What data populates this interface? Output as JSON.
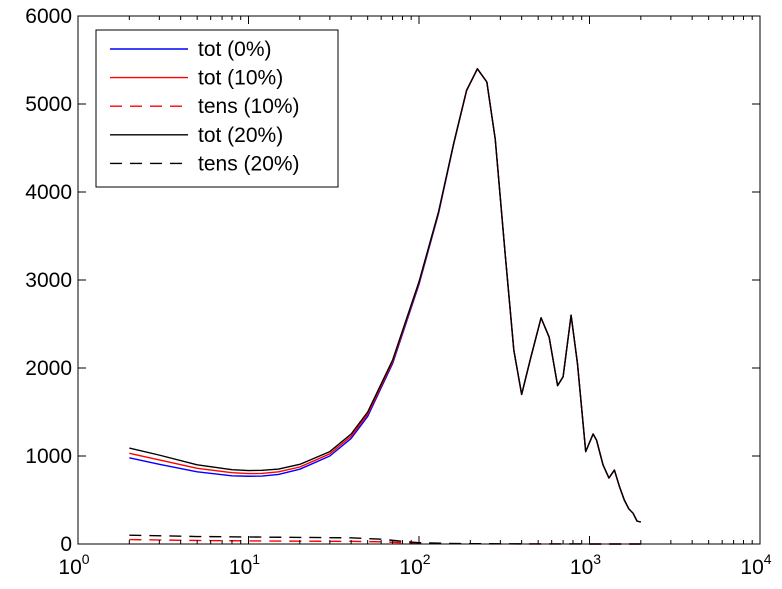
{
  "chart_data": {
    "type": "line",
    "title": "",
    "xlabel": "",
    "ylabel": "",
    "x_scale": "log",
    "xlim": [
      1,
      10000
    ],
    "ylim": [
      0,
      6000
    ],
    "x_ticks": [
      {
        "value": 1,
        "base": "10",
        "exp": "0"
      },
      {
        "value": 10,
        "base": "10",
        "exp": "1"
      },
      {
        "value": 100,
        "base": "10",
        "exp": "2"
      },
      {
        "value": 1000,
        "base": "10",
        "exp": "3"
      },
      {
        "value": 10000,
        "base": "10",
        "exp": "4"
      }
    ],
    "y_ticks": [
      0,
      1000,
      2000,
      3000,
      4000,
      5000,
      6000
    ],
    "grid": false,
    "legend_position": "top-left",
    "series": [
      {
        "name": "tot (0%)",
        "color": "#0000ff",
        "dash": "solid",
        "x": [
          2,
          3,
          5,
          8,
          10,
          12,
          15,
          20,
          30,
          40,
          50,
          70,
          100,
          130,
          160,
          190,
          220,
          250,
          280,
          320,
          360,
          400,
          450,
          520,
          580,
          650,
          700,
          780,
          850,
          950,
          1050,
          1100,
          1200,
          1300,
          1400,
          1500,
          1600,
          1700,
          1800,
          1900,
          2000
        ],
        "y": [
          980,
          905,
          820,
          775,
          770,
          772,
          790,
          850,
          1000,
          1200,
          1450,
          2050,
          2950,
          3750,
          4550,
          5150,
          5400,
          5250,
          4600,
          3300,
          2200,
          1700,
          2100,
          2570,
          2350,
          1800,
          1900,
          2600,
          2050,
          1050,
          1250,
          1180,
          900,
          750,
          840,
          650,
          500,
          400,
          350,
          260,
          250
        ]
      },
      {
        "name": "tot (10%)",
        "color": "#ff0000",
        "dash": "solid",
        "x": [
          2,
          3,
          5,
          8,
          10,
          12,
          15,
          20,
          30,
          40,
          50,
          70,
          100,
          130,
          160,
          190,
          220,
          250,
          280,
          320,
          360,
          400,
          450,
          520,
          580,
          650,
          700,
          780,
          850,
          950,
          1050,
          1100,
          1200,
          1300,
          1400,
          1500,
          1600,
          1700,
          1800,
          1900,
          2000
        ],
        "y": [
          1030,
          955,
          860,
          810,
          800,
          802,
          820,
          875,
          1025,
          1225,
          1475,
          2070,
          2965,
          3760,
          4555,
          5150,
          5400,
          5250,
          4600,
          3300,
          2200,
          1700,
          2100,
          2570,
          2350,
          1800,
          1900,
          2600,
          2050,
          1050,
          1250,
          1180,
          900,
          750,
          840,
          650,
          500,
          400,
          350,
          260,
          250
        ]
      },
      {
        "name": "tens (10%)",
        "color": "#ff0000",
        "dash": "dashed",
        "x": [
          2,
          5,
          10,
          20,
          40,
          60,
          80,
          100,
          150,
          200,
          300,
          500,
          1000,
          2000
        ],
        "y": [
          50,
          40,
          35,
          32,
          30,
          25,
          15,
          8,
          3,
          2,
          1,
          1,
          0,
          0
        ]
      },
      {
        "name": "tot (20%)",
        "color": "#000000",
        "dash": "solid",
        "x": [
          2,
          3,
          5,
          8,
          10,
          12,
          15,
          20,
          30,
          40,
          50,
          70,
          100,
          130,
          160,
          190,
          220,
          250,
          280,
          320,
          360,
          400,
          450,
          520,
          580,
          650,
          700,
          780,
          850,
          950,
          1050,
          1100,
          1200,
          1300,
          1400,
          1500,
          1600,
          1700,
          1800,
          1900,
          2000
        ],
        "y": [
          1090,
          1010,
          900,
          845,
          835,
          837,
          852,
          905,
          1050,
          1250,
          1500,
          2090,
          2980,
          3770,
          4560,
          5155,
          5400,
          5250,
          4600,
          3300,
          2200,
          1700,
          2100,
          2570,
          2350,
          1800,
          1900,
          2600,
          2050,
          1050,
          1250,
          1180,
          900,
          750,
          840,
          650,
          500,
          400,
          350,
          260,
          250
        ]
      },
      {
        "name": "tens (20%)",
        "color": "#000000",
        "dash": "dashed",
        "x": [
          2,
          5,
          10,
          20,
          40,
          60,
          80,
          100,
          150,
          200,
          300,
          500,
          1000,
          2000
        ],
        "y": [
          100,
          85,
          80,
          75,
          70,
          55,
          30,
          15,
          6,
          4,
          2,
          1,
          0,
          0
        ]
      }
    ]
  }
}
